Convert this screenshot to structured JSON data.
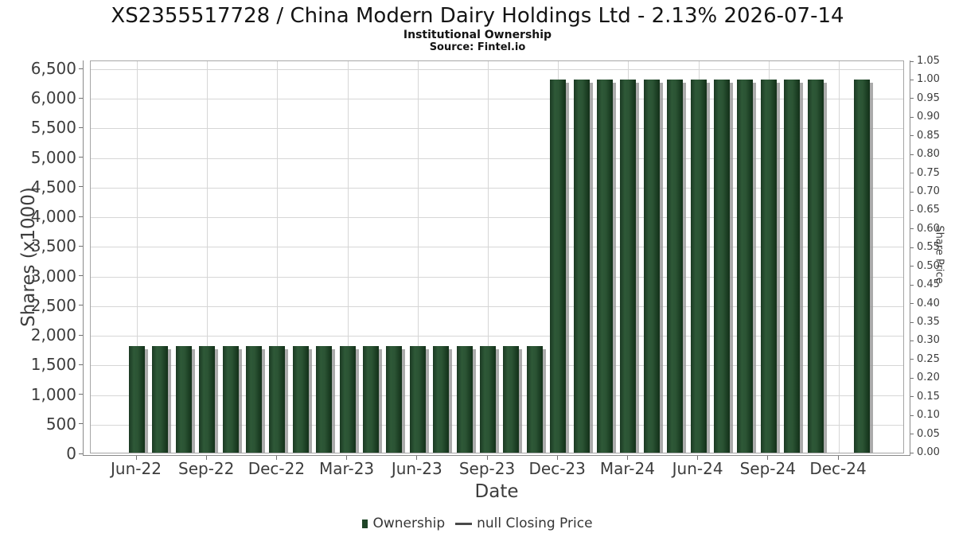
{
  "chart_data": {
    "type": "bar",
    "title": "XS2355517728 / China Modern Dairy Holdings Ltd - 2.13% 2026-07-14",
    "subtitle": "Institutional Ownership",
    "source": "Source: Fintel.io",
    "grid": true,
    "legend_position": "bottom",
    "x_axis": {
      "label": "Date",
      "tick_labels": [
        "Jun-22",
        "Sep-22",
        "Dec-22",
        "Mar-23",
        "Jun-23",
        "Sep-23",
        "Dec-23",
        "Mar-24",
        "Jun-24",
        "Sep-24",
        "Dec-24"
      ]
    },
    "y_axis_left": {
      "label": "Shares (x1000)",
      "min": 0,
      "max": 6500,
      "tick_step": 500,
      "tick_labels": [
        "0",
        "500",
        "1,000",
        "1,500",
        "2,000",
        "2,500",
        "3,000",
        "3,500",
        "4,000",
        "4,500",
        "5,000",
        "5,500",
        "6,000",
        "6,500"
      ]
    },
    "y_axis_right": {
      "label": "Share Price",
      "min": 0,
      "max": 1.05,
      "tick_step": 0.05,
      "tick_labels": [
        "0.00",
        "0.05",
        "0.10",
        "0.15",
        "0.20",
        "0.25",
        "0.30",
        "0.35",
        "0.40",
        "0.45",
        "0.50",
        "0.55",
        "0.60",
        "0.65",
        "0.70",
        "0.75",
        "0.80",
        "0.85",
        "0.90",
        "0.95",
        "1.00",
        "1.05"
      ]
    },
    "series": [
      {
        "name": "Ownership",
        "type": "bar",
        "color": "#2e5837",
        "months": [
          "Jun-22",
          "Jul-22",
          "Aug-22",
          "Sep-22",
          "Oct-22",
          "Nov-22",
          "Dec-22",
          "Jan-23",
          "Feb-23",
          "Mar-23",
          "Apr-23",
          "May-23",
          "Jun-23",
          "Jul-23",
          "Aug-23",
          "Sep-23",
          "Oct-23",
          "Nov-23",
          "Dec-23",
          "Jan-24",
          "Feb-24",
          "Mar-24",
          "Apr-24",
          "May-24",
          "Jun-24",
          "Jul-24",
          "Aug-24",
          "Sep-24",
          "Oct-24",
          "Nov-24",
          "Dec-24",
          "Jan-25"
        ],
        "values": [
          1800,
          1800,
          1800,
          1800,
          1800,
          1800,
          1800,
          1800,
          1800,
          1800,
          1800,
          1800,
          1800,
          1800,
          1800,
          1800,
          1800,
          1800,
          6300,
          6300,
          6300,
          6300,
          6300,
          6300,
          6300,
          6300,
          6300,
          6300,
          6300,
          6300,
          null,
          6300
        ]
      },
      {
        "name": "null Closing Price",
        "type": "line",
        "color": "#4a4a4a",
        "values": []
      }
    ],
    "colors": {
      "bar_highlight": "#2e5837",
      "bar_edge": "#133019",
      "bar_shadow": "#969696",
      "gridline": "#d6d6d6",
      "axis_line": "#8a8a8a",
      "tick_text": "#3d3d3d",
      "title_text": "#141414",
      "legend_marker": "#1f4527"
    }
  }
}
